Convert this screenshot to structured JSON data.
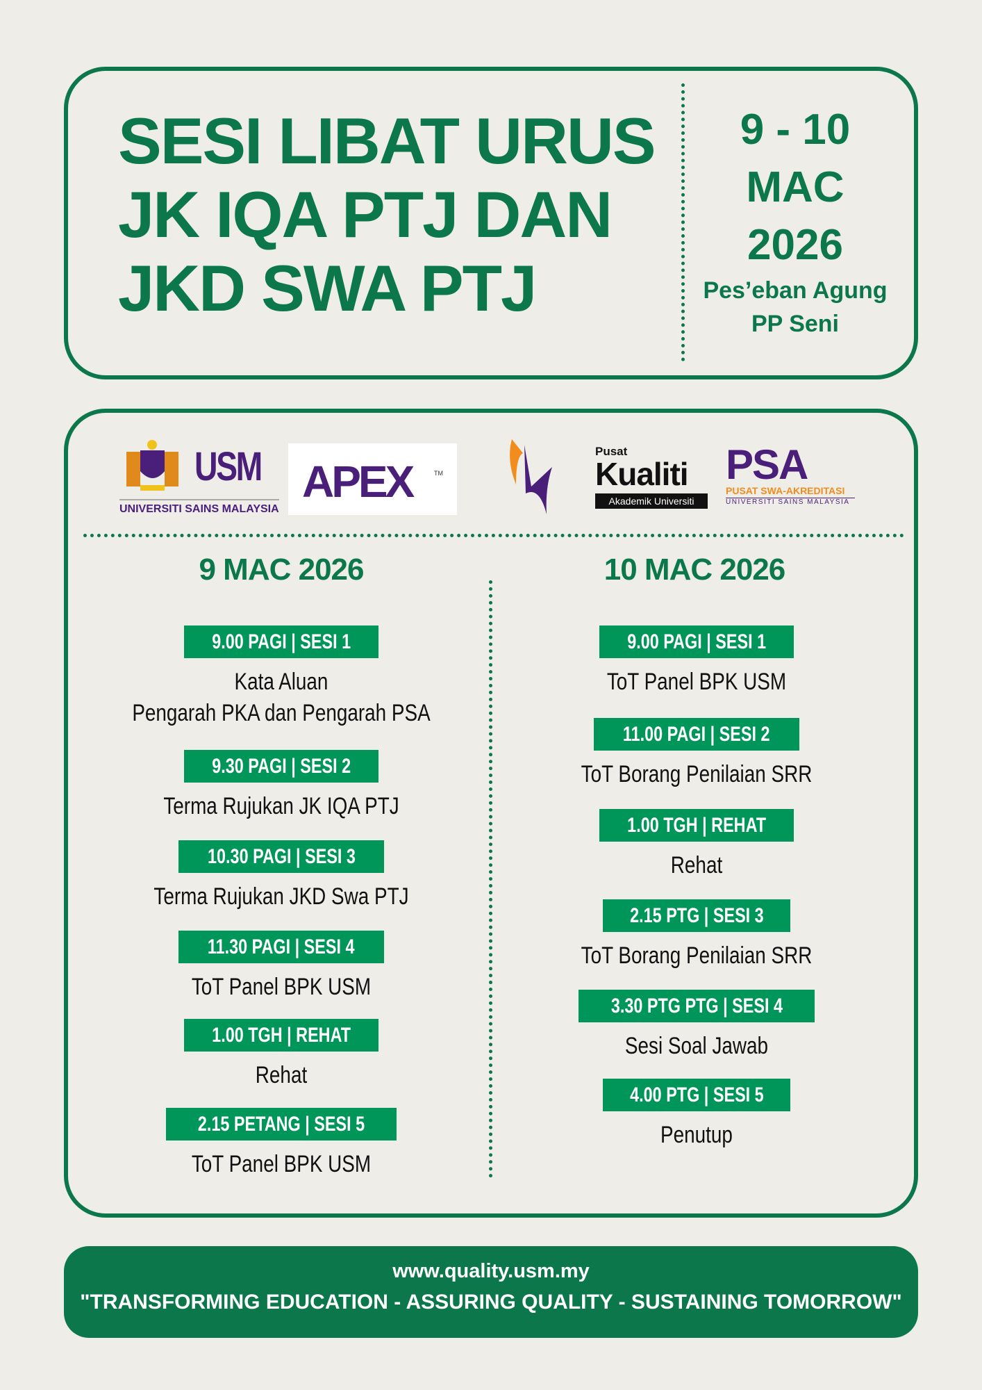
{
  "header": {
    "title_lines": [
      "SESI LIBAT URUS",
      "JK IQA PTJ DAN",
      "JKD SWA PTJ"
    ],
    "date_lines": [
      "9 - 10",
      "MAC",
      "2026"
    ],
    "venue_lines": [
      "Pes’eban Agung",
      "PP Seni"
    ]
  },
  "logos": {
    "usm": {
      "mark": "USM",
      "caption": "UNIVERSITI SAINS MALAYSIA"
    },
    "apex": {
      "mark": "APEX",
      "tm": "TM"
    },
    "kualiti": {
      "small": "Pusat",
      "big": "Kualiti",
      "caption": "Akademik Universiti"
    },
    "psa": {
      "mark": "PSA",
      "line1": "PUSAT SWA-AKREDITASI",
      "line2": "UNIVERSITI SAINS MALAYSIA"
    }
  },
  "days": [
    {
      "title": "9 MAC 2026",
      "sessions": [
        {
          "badge": "9.00 PAGI  |  SESI 1",
          "desc": [
            "Kata Aluan",
            "Pengarah PKA dan Pengarah PSA"
          ]
        },
        {
          "badge": "9.30 PAGI  |  SESI 2",
          "desc": [
            "Terma Rujukan JK IQA PTJ"
          ]
        },
        {
          "badge": "10.30 PAGI  |  SESI 3",
          "desc": [
            "Terma Rujukan JKD Swa PTJ"
          ]
        },
        {
          "badge": "11.30 PAGI  |  SESI 4",
          "desc": [
            "ToT Panel BPK USM"
          ]
        },
        {
          "badge": "1.00 TGH  |  REHAT",
          "desc": [
            "Rehat"
          ]
        },
        {
          "badge": "2.15 PETANG  |  SESI 5",
          "desc": [
            "ToT Panel BPK USM"
          ]
        }
      ]
    },
    {
      "title": "10 MAC 2026",
      "sessions": [
        {
          "badge": "9.00 PAGI  |  SESI 1",
          "desc": [
            "ToT Panel BPK USM"
          ]
        },
        {
          "badge": "11.00 PAGI  |  SESI 2",
          "desc": [
            "ToT Borang Penilaian SRR"
          ]
        },
        {
          "badge": "1.00 TGH | REHAT",
          "desc": [
            "Rehat"
          ]
        },
        {
          "badge": "2.15 PTG  |  SESI 3",
          "desc": [
            "ToT Borang Penilaian SRR"
          ]
        },
        {
          "badge": "3.30 PTG PTG  |  SESI 4",
          "desc": [
            "Sesi Soal Jawab"
          ]
        },
        {
          "badge": "4.00 PTG  |  SESI 5",
          "desc": [
            "Penutup"
          ]
        }
      ]
    }
  ],
  "footer": {
    "url": "www.quality.usm.my",
    "tagline": "\"TRANSFORMING EDUCATION - ASSURING QUALITY - SUSTAINING TOMORROW\""
  },
  "colors": {
    "primary_green": "#0b774b",
    "badge_green": "#00965a",
    "background": "#eeede8",
    "purple": "#4a1f7a",
    "orange": "#f28c1c"
  }
}
